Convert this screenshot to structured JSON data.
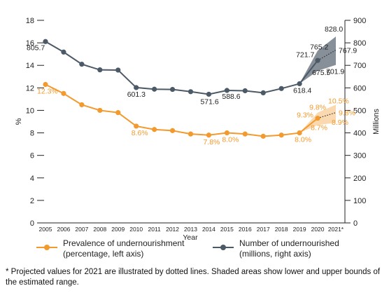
{
  "chart_data": {
    "type": "line",
    "title": "",
    "xlabel": "Year",
    "ylabel_left": "%",
    "ylabel_right": "Millions",
    "x_tick_labels": [
      "2005",
      "2006",
      "2007",
      "2008",
      "2009",
      "2010",
      "2011",
      "2012",
      "2013",
      "2014",
      "2015",
      "2016",
      "2017",
      "2018",
      "2019",
      "2020",
      "2021*"
    ],
    "ylim_left": [
      0,
      18
    ],
    "ylim_right": [
      0,
      900
    ],
    "left_ticks": [
      "0",
      "2",
      "4",
      "6",
      "8",
      "10",
      "12",
      "14",
      "16",
      "18"
    ],
    "right_ticks": [
      "0",
      "100",
      "200",
      "300",
      "400",
      "500",
      "600",
      "700",
      "800",
      "900"
    ],
    "grid": false,
    "series": [
      {
        "name": "Prevalence of undernourishment (percentage, left axis)",
        "axis": "left",
        "color": "#f39a2f",
        "values": [
          12.3,
          11.5,
          10.5,
          10.0,
          9.8,
          8.6,
          8.3,
          8.2,
          7.9,
          7.8,
          8.0,
          7.9,
          7.7,
          7.8,
          8.0,
          9.3,
          null
        ],
        "data_labels": [
          {
            "year": "2005",
            "value": 12.3,
            "text": "12.3%"
          },
          {
            "year": "2010",
            "value": 8.6,
            "text": "8.6%"
          },
          {
            "year": "2014",
            "value": 7.8,
            "text": "7.8%"
          },
          {
            "year": "2015",
            "value": 8.0,
            "text": "8.0%"
          },
          {
            "year": "2019",
            "value": 8.0,
            "text": "8.0%"
          },
          {
            "year": "2020",
            "value": 9.3,
            "text": "9.3%"
          }
        ],
        "projection_2021": {
          "value": 9.8,
          "text": "9.8%"
        },
        "range_2020": {
          "low": 8.7,
          "high": 9.8,
          "low_text": "8.7%",
          "high_text": "9.8%"
        },
        "range_2021": {
          "low": 8.9,
          "high": 10.5,
          "low_text": "8.9%",
          "high_text": "10.5%"
        }
      },
      {
        "name": "Number of undernourished (millions, right axis)",
        "axis": "right",
        "color": "#4c5966",
        "values": [
          805.7,
          759,
          705,
          680,
          679,
          601.3,
          594,
          593,
          583,
          571.6,
          588.6,
          587,
          578,
          597,
          618.4,
          721.7,
          null
        ],
        "data_labels": [
          {
            "year": "2005",
            "value": 805.7,
            "text": "805.7"
          },
          {
            "year": "2010",
            "value": 601.3,
            "text": "601.3"
          },
          {
            "year": "2014",
            "value": 571.6,
            "text": "571.6"
          },
          {
            "year": "2015",
            "value": 588.6,
            "text": "588.6"
          },
          {
            "year": "2019",
            "value": 618.4,
            "text": "618.4"
          },
          {
            "year": "2020",
            "value": 721.7,
            "text": "721.7"
          }
        ],
        "projection_2021": {
          "value": 767.9,
          "text": "767.9"
        },
        "range_2020": {
          "low": 675.5,
          "high": 765.2,
          "low_text": "675.5",
          "high_text": "765.2"
        },
        "range_2021": {
          "low": 701.9,
          "high": 828.0,
          "low_text": "701.9",
          "high_text": "828.0"
        }
      }
    ]
  },
  "legend": {
    "pou_label": "Prevalence of undernourishment\n(percentage, left axis)",
    "nou_label": "Number of undernourished\n(millions, right axis)"
  },
  "footnote": "* Projected values for 2021 are illustrated by dotted lines. Shaded areas show lower and upper bounds of the estimated range."
}
